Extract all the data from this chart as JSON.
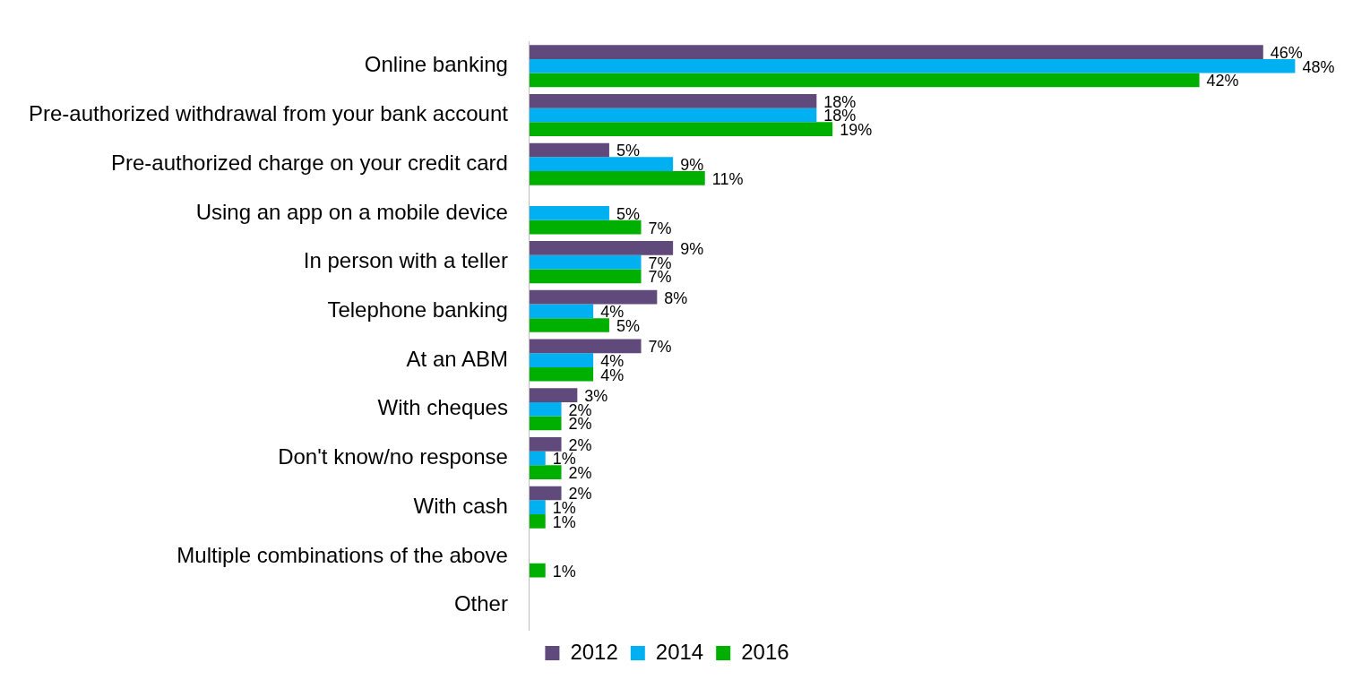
{
  "chart_data": {
    "type": "bar",
    "orientation": "horizontal",
    "legend": "bottom",
    "categories": [
      "Online banking",
      "Pre-authorized withdrawal from your bank account",
      "Pre-authorized charge on your credit card",
      "Using an app on a mobile device",
      "In person with a teller",
      "Telephone banking",
      "At an ABM",
      "With cheques",
      "Don't know/no response",
      "With cash",
      "Multiple combinations of the above",
      "Other"
    ],
    "series": [
      {
        "name": "2012",
        "color": "#604a7b",
        "values": [
          46,
          18,
          5,
          null,
          9,
          8,
          7,
          3,
          2,
          2,
          null,
          null
        ],
        "value_labels": [
          "46%",
          "18%",
          "5%",
          null,
          "9%",
          "8%",
          "7%",
          "3%",
          "2%",
          "2%",
          null,
          null
        ]
      },
      {
        "name": "2014",
        "color": "#00b0f0",
        "values": [
          48,
          18,
          9,
          5,
          7,
          4,
          4,
          2,
          1,
          1,
          null,
          null
        ],
        "value_labels": [
          "48%",
          "18%",
          "9%",
          "5%",
          "7%",
          "4%",
          "4%",
          "2%",
          "1%",
          "1%",
          null,
          null
        ]
      },
      {
        "name": "2016",
        "color": "#00b000",
        "values": [
          42,
          19,
          11,
          7,
          7,
          5,
          4,
          2,
          2,
          1,
          1,
          null
        ],
        "value_labels": [
          "42%",
          "19%",
          "11%",
          "7%",
          "7%",
          "5%",
          "4%",
          "2%",
          "2%",
          "1%",
          "1%",
          null
        ]
      }
    ]
  }
}
